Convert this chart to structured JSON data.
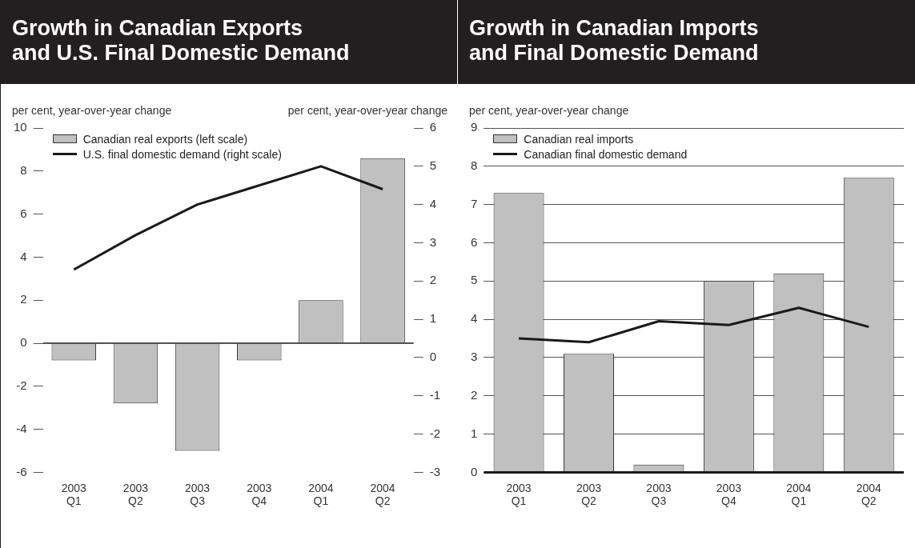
{
  "chart_data": [
    {
      "type": "bar",
      "title": "Growth in Canadian Exports\nand U.S. Final Domestic Demand",
      "ylabel": "per cent, year-over-year change",
      "y2label": "per cent, year-over-year change",
      "categories": [
        "2003 Q1",
        "2003 Q2",
        "2003 Q3",
        "2003 Q4",
        "2004 Q1",
        "2004 Q2"
      ],
      "series": [
        {
          "name": "Canadian real exports (left scale)",
          "color": "#c0c0c0",
          "values": [
            -0.8,
            -2.8,
            -5.0,
            -0.8,
            2.0,
            8.6
          ]
        },
        {
          "name": "U.S. final domestic demand (right scale)",
          "type": "line",
          "axis": "y2",
          "color": "#1a1a1a",
          "values": [
            2.3,
            3.2,
            4.0,
            4.5,
            5.0,
            4.4
          ]
        }
      ],
      "ylim": [
        -6,
        10
      ],
      "yticks": [
        -6,
        -4,
        -2,
        0,
        2,
        4,
        6,
        8,
        10
      ],
      "y2lim": [
        -3,
        6
      ],
      "y2ticks": [
        -3,
        -2,
        -1,
        0,
        1,
        2,
        3,
        4,
        5,
        6
      ],
      "legend": "top left",
      "marker": "none"
    },
    {
      "type": "bar",
      "title": "Growth in Canadian Imports\nand Final Domestic Demand",
      "ylabel": "per cent, year-over-year change",
      "categories": [
        "2003 Q1",
        "2003 Q2",
        "2003 Q3",
        "2003 Q4",
        "2004 Q1",
        "2004 Q2"
      ],
      "series": [
        {
          "name": "Canadian real imports",
          "color": "#c0c0c0",
          "values": [
            7.3,
            3.1,
            0.2,
            5.0,
            5.2,
            7.7
          ]
        },
        {
          "name": "Canadian final domestic demand",
          "type": "line",
          "color": "#1a1a1a",
          "values": [
            3.5,
            3.4,
            3.95,
            3.85,
            4.3,
            3.8
          ]
        }
      ],
      "ylim": [
        0,
        9
      ],
      "yticks": [
        0,
        1,
        2,
        3,
        4,
        5,
        6,
        7,
        8,
        9
      ],
      "grid": "y",
      "legend": "top left",
      "marker": "none"
    }
  ]
}
